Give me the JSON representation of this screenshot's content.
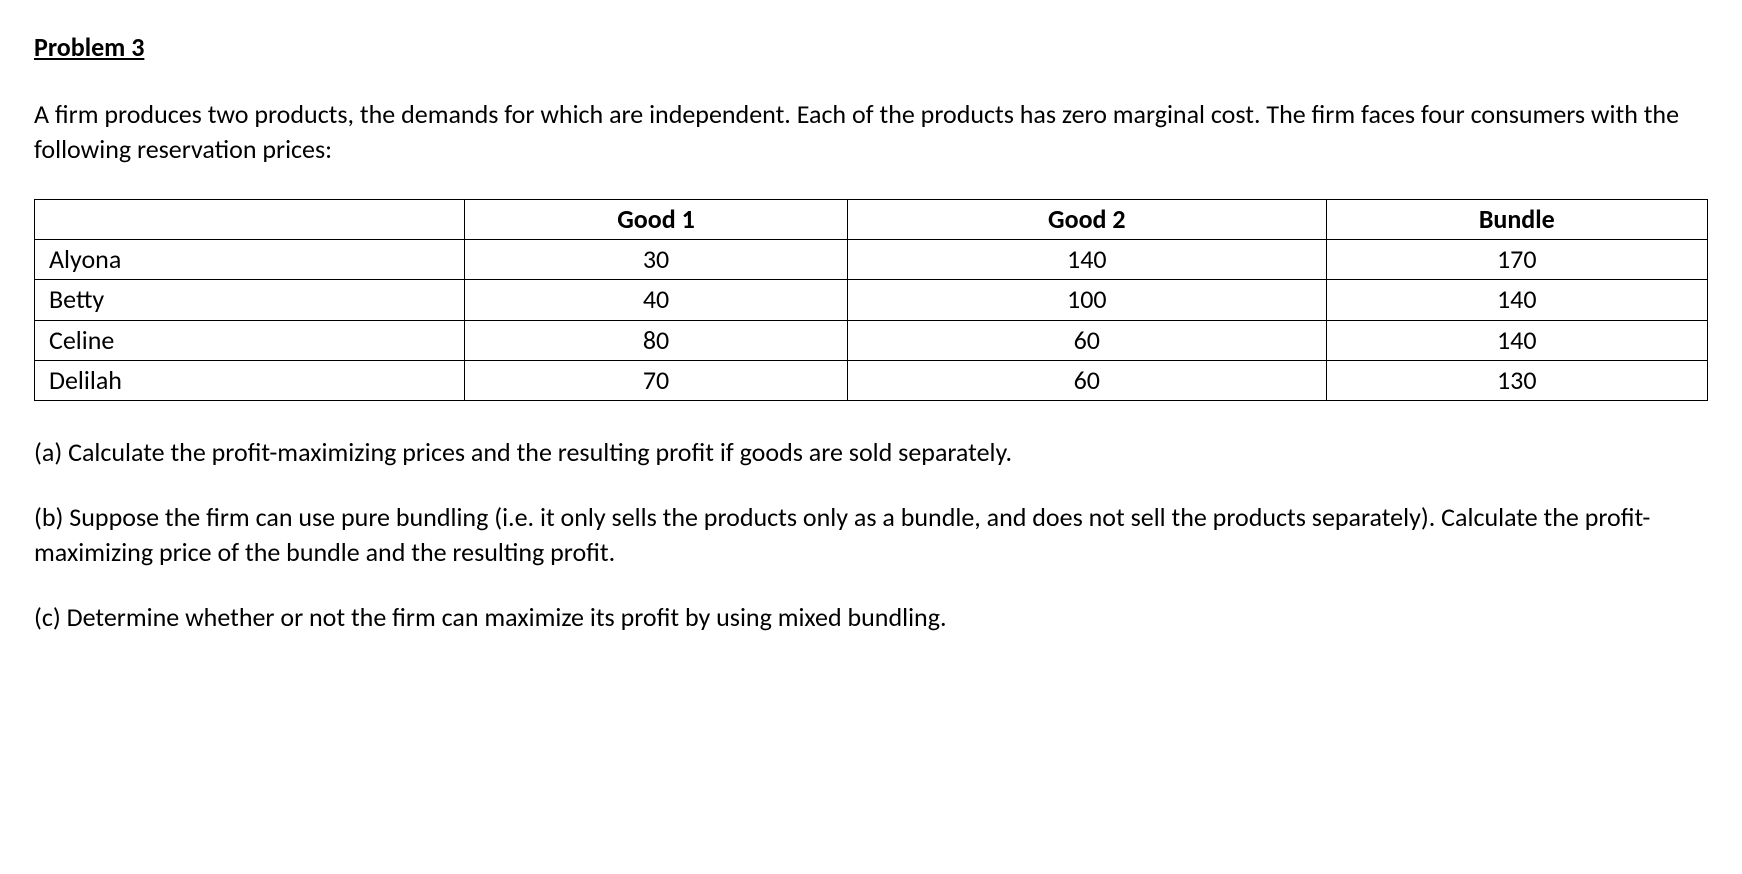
{
  "title": "Problem 3",
  "intro": "A firm produces two products, the demands for which are independent. Each of the products has zero marginal cost. The firm faces four consumers with the following reservation prices:",
  "table": {
    "columns": [
      "",
      "Good 1",
      "Good 2",
      "Bundle"
    ],
    "column_widths": [
      "25.7%",
      "22.9%",
      "28.6%",
      "22.8%"
    ],
    "border_color": "#000000",
    "header_fontweight": 700,
    "cell_fontsize": 26,
    "rows": [
      {
        "label": "Alyona",
        "good1": "30",
        "good2": "140",
        "bundle": "170"
      },
      {
        "label": "Betty",
        "good1": "40",
        "good2": "100",
        "bundle": "140"
      },
      {
        "label": "Celine",
        "good1": "80",
        "good2": "60",
        "bundle": "140"
      },
      {
        "label": "Delilah",
        "good1": "70",
        "good2": "60",
        "bundle": "130"
      }
    ]
  },
  "questions": {
    "a": "(a) Calculate the profit-maximizing prices and the resulting profit if goods are sold separately.",
    "b": "(b) Suppose the firm can use pure bundling (i.e. it only sells the products only as a bundle, and does not sell the products separately). Calculate the profit-maximizing price of the bundle and the resulting profit.",
    "c": "(c) Determine whether or not the firm can maximize its profit by using mixed bundling."
  },
  "colors": {
    "text": "#000000",
    "background": "#ffffff",
    "table_border": "#000000"
  },
  "typography": {
    "font_family": "Calibri, 'Segoe UI', Arial, sans-serif",
    "base_fontsize": 26,
    "title_fontsize": 26,
    "title_fontweight": 700
  }
}
